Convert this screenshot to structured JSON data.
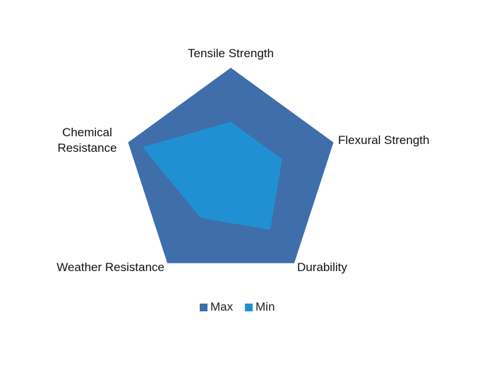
{
  "chart_data": {
    "type": "radar",
    "categories": [
      "Tensile Strength",
      "Flexural Strength",
      "Durability",
      "Weather Resistance",
      "Chemical Resistance"
    ],
    "series": [
      {
        "name": "Max",
        "color": "#3f6eab",
        "values": [
          10,
          10,
          10,
          10,
          10
        ]
      },
      {
        "name": "Min",
        "color": "#2190d2",
        "values": [
          5,
          5,
          6.2,
          4.8,
          8.6
        ]
      }
    ],
    "ylim": [
      0,
      10
    ],
    "legend": "bottom"
  }
}
